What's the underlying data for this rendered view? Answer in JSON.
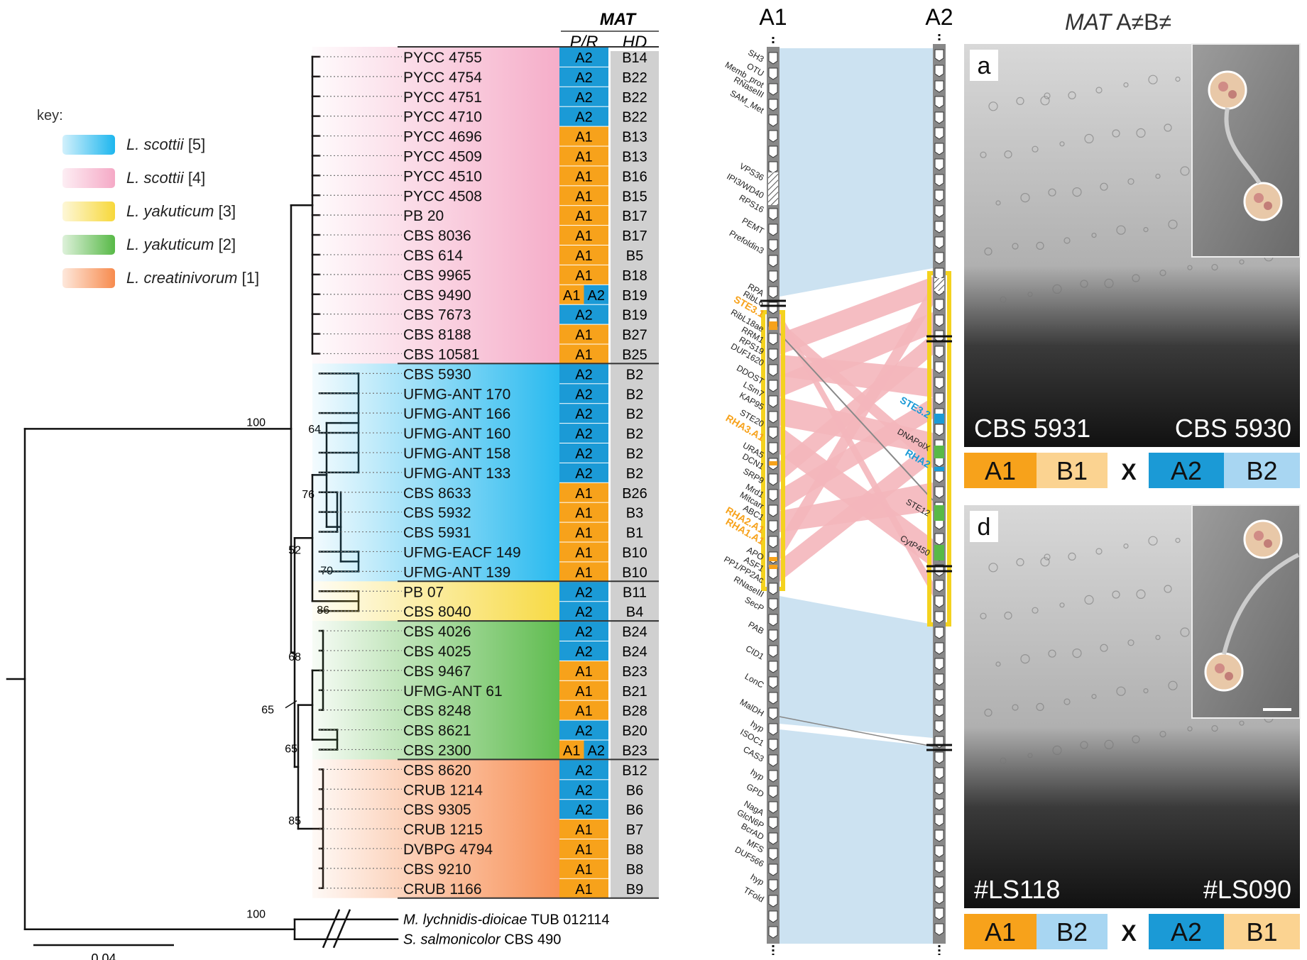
{
  "header": {
    "mat_title": "MAT",
    "col_pr": "P/R",
    "col_hd": "HD",
    "photo_title_mat": "MAT",
    "photo_title_rest": " A≠B≠",
    "locus_a1": "A1",
    "locus_a2": "A2"
  },
  "key": {
    "title": "key:",
    "items": [
      {
        "species": "L. scottii",
        "group": " [5]",
        "color": "#1db6ee"
      },
      {
        "species": "L. scottii",
        "group": " [4]",
        "color": "#f5a9c6"
      },
      {
        "species": "L. yakuticum",
        "group": " [3]",
        "color": "#f7d83a"
      },
      {
        "species": "L. yakuticum",
        "group": " [2]",
        "color": "#58b947"
      },
      {
        "species": "L. creatinivorum",
        "group": " [1]",
        "color": "#f78b4e"
      }
    ]
  },
  "strains": [
    {
      "name": "PYCC 4755",
      "pr": "A2",
      "hd": "B14",
      "clade": 4
    },
    {
      "name": "PYCC 4754",
      "pr": "A2",
      "hd": "B22",
      "clade": 4
    },
    {
      "name": "PYCC 4751",
      "pr": "A2",
      "hd": "B22",
      "clade": 4
    },
    {
      "name": "PYCC 4710",
      "pr": "A2",
      "hd": "B22",
      "clade": 4
    },
    {
      "name": "PYCC 4696",
      "pr": "A1",
      "hd": "B13",
      "clade": 4
    },
    {
      "name": "PYCC 4509",
      "pr": "A1",
      "hd": "B13",
      "clade": 4
    },
    {
      "name": "PYCC 4510",
      "pr": "A1",
      "hd": "B16",
      "clade": 4
    },
    {
      "name": "PYCC 4508",
      "pr": "A1",
      "hd": "B15",
      "clade": 4
    },
    {
      "name": "PB 20",
      "pr": "A1",
      "hd": "B17",
      "clade": 4
    },
    {
      "name": "CBS 8036",
      "pr": "A1",
      "hd": "B17",
      "clade": 4
    },
    {
      "name": "CBS 614",
      "pr": "A1",
      "hd": "B5",
      "clade": 4
    },
    {
      "name": "CBS 9965",
      "pr": "A1",
      "hd": "B18",
      "clade": 4
    },
    {
      "name": "CBS 9490",
      "pr": "A1 A2",
      "hd": "B19",
      "clade": 4
    },
    {
      "name": "CBS 7673",
      "pr": "A2",
      "hd": "B19",
      "clade": 4
    },
    {
      "name": "CBS 8188",
      "pr": "A1",
      "hd": "B27",
      "clade": 4
    },
    {
      "name": "CBS 10581",
      "pr": "A1",
      "hd": "B25",
      "clade": 4
    },
    {
      "name": "CBS 5930",
      "pr": "A2",
      "hd": "B2",
      "clade": 5
    },
    {
      "name": "UFMG-ANT 170",
      "pr": "A2",
      "hd": "B2",
      "clade": 5
    },
    {
      "name": "UFMG-ANT 166",
      "pr": "A2",
      "hd": "B2",
      "clade": 5
    },
    {
      "name": "UFMG-ANT 160",
      "pr": "A2",
      "hd": "B2",
      "clade": 5
    },
    {
      "name": "UFMG-ANT 158",
      "pr": "A2",
      "hd": "B2",
      "clade": 5
    },
    {
      "name": "UFMG-ANT 133",
      "pr": "A2",
      "hd": "B2",
      "clade": 5
    },
    {
      "name": "CBS 8633",
      "pr": "A1",
      "hd": "B26",
      "clade": 5
    },
    {
      "name": "CBS 5932",
      "pr": "A1",
      "hd": "B3",
      "clade": 5
    },
    {
      "name": "CBS 5931",
      "pr": "A1",
      "hd": "B1",
      "clade": 5
    },
    {
      "name": "UFMG-EACF 149",
      "pr": "A1",
      "hd": "B10",
      "clade": 5
    },
    {
      "name": "UFMG-ANT 139",
      "pr": "A1",
      "hd": "B10",
      "clade": 5
    },
    {
      "name": "PB 07",
      "pr": "A2",
      "hd": "B11",
      "clade": 3
    },
    {
      "name": "CBS 8040",
      "pr": "A2",
      "hd": "B4",
      "clade": 3
    },
    {
      "name": "CBS 4026",
      "pr": "A2",
      "hd": "B24",
      "clade": 2
    },
    {
      "name": "CBS 4025",
      "pr": "A2",
      "hd": "B24",
      "clade": 2
    },
    {
      "name": "CBS 9467",
      "pr": "A1",
      "hd": "B23",
      "clade": 2
    },
    {
      "name": "UFMG-ANT 61",
      "pr": "A1",
      "hd": "B21",
      "clade": 2
    },
    {
      "name": "CBS 8248",
      "pr": "A1",
      "hd": "B28",
      "clade": 2
    },
    {
      "name": "CBS 8621",
      "pr": "A2",
      "hd": "B20",
      "clade": 2
    },
    {
      "name": "CBS 2300",
      "pr": "A1 A2",
      "hd": "B23",
      "clade": 2
    },
    {
      "name": "CBS 8620",
      "pr": "A2",
      "hd": "B12",
      "clade": 1
    },
    {
      "name": "CRUB 1214",
      "pr": "A2",
      "hd": "B6",
      "clade": 1
    },
    {
      "name": "CBS 9305",
      "pr": "A2",
      "hd": "B6",
      "clade": 1
    },
    {
      "name": "CRUB 1215",
      "pr": "A1",
      "hd": "B7",
      "clade": 1
    },
    {
      "name": "DVBPG 4794",
      "pr": "A1",
      "hd": "B8",
      "clade": 1
    },
    {
      "name": "CBS 9210",
      "pr": "A1",
      "hd": "B8",
      "clade": 1
    },
    {
      "name": "CRUB 1166",
      "pr": "A1",
      "hd": "B9",
      "clade": 1
    }
  ],
  "outgroups": [
    {
      "species": "M. lychnidis-dioicae",
      "strain": " TUB 012114"
    },
    {
      "species": "S. salmonicolor",
      "strain": " CBS 490"
    }
  ],
  "bootstrap": [
    "64",
    "76",
    "70",
    "52",
    "86",
    "68",
    "65",
    "65",
    "85",
    "100",
    "100"
  ],
  "scale_label": "0.04",
  "genes_a1": [
    "SH3",
    "OTU",
    "Memb_prot",
    "RNaseIII",
    "SAM_Met",
    "VPS36",
    "IPI3/WD40",
    "RPS16",
    "PEMT",
    "Prefoldin3",
    "RPA",
    "RibL6",
    "STE3.1",
    "RibL18ae",
    "RRM1",
    "RPS19",
    "DUF1620",
    "DDOST",
    "LSm7",
    "KAP95",
    "STE20",
    "RHA3.A1",
    "URA5",
    "DCN1",
    "SRP9",
    "Mrd1",
    "Mitcarr",
    "ABC1",
    "RHA2.A1",
    "RHA1.A1",
    "APO",
    "ASF1",
    "PP1/PP2Ac",
    "RNaseIII",
    "SecP",
    "PAB",
    "CID1",
    "LonC",
    "MalDH",
    "hyp",
    "ISOC1",
    "CAS3",
    "hyp",
    "GPD",
    "NagA",
    "GlcN6P",
    "BcrAD",
    "MFS",
    "DUF566",
    "hyp",
    "TFold"
  ],
  "genes_a2": [
    "STE3.2",
    "DNAPolX",
    "RHA2",
    "STE12",
    "CytP450"
  ],
  "photos": [
    {
      "letter": "a",
      "left_strain": "CBS 5931",
      "right_strain": "CBS 5930",
      "cross": [
        "A1",
        "B1",
        "A2",
        "B2"
      ]
    },
    {
      "letter": "d",
      "left_strain": "#LS118",
      "right_strain": "#LS090",
      "cross": [
        "A1",
        "B2",
        "A2",
        "B1"
      ]
    }
  ],
  "cross_symbol": "X",
  "colors": {
    "a1": "#f7a21b",
    "a2": "#1b9ad6",
    "hd": "#d0d0d0",
    "b_light_orange": "#fbd391",
    "b_light_blue": "#a8d6f2",
    "synteny_blue": "#c7dff0",
    "synteny_pink": "#f4b6bb",
    "mat_yellow": "#f4d21f"
  }
}
